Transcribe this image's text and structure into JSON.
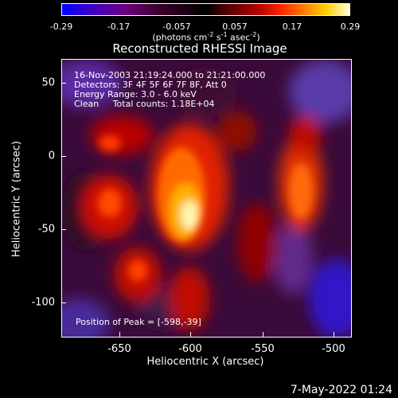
{
  "colorbar": {
    "ticks": [
      "-0.29",
      "-0.17",
      "-0.057",
      "0.057",
      "0.17",
      "0.29"
    ],
    "units_prefix": "(photons cm",
    "units_sup1": "-2",
    "units_mid": " s",
    "units_sup2": "-1",
    "units_mid2": " asec",
    "units_sup3": "-2",
    "units_suffix": ")"
  },
  "title": "Reconstructed RHESSI Image",
  "annotations": {
    "time_range": "16-Nov-2003 21:19:24.000 to 21:21:00.000",
    "detectors": "Detectors: 3F 4F 5F 6F 7F 8F, Att 0",
    "energy": "Energy Range: 3.0 - 6.0 keV",
    "clean": "Clean     Total counts: 1.18E+04",
    "peak": "Position of Peak = [-598,-39]"
  },
  "axes": {
    "xlabel": "Heliocentric X (arcsec)",
    "ylabel": "Heliocentric Y (arcsec)",
    "xticks": [
      "-650",
      "-600",
      "-550",
      "-500"
    ],
    "yticks": [
      "50",
      "0",
      "-50",
      "-100"
    ]
  },
  "datestamp": "7-May-2022 01:24",
  "colors": {
    "background": "#000000",
    "foreground": "#ffffff"
  }
}
